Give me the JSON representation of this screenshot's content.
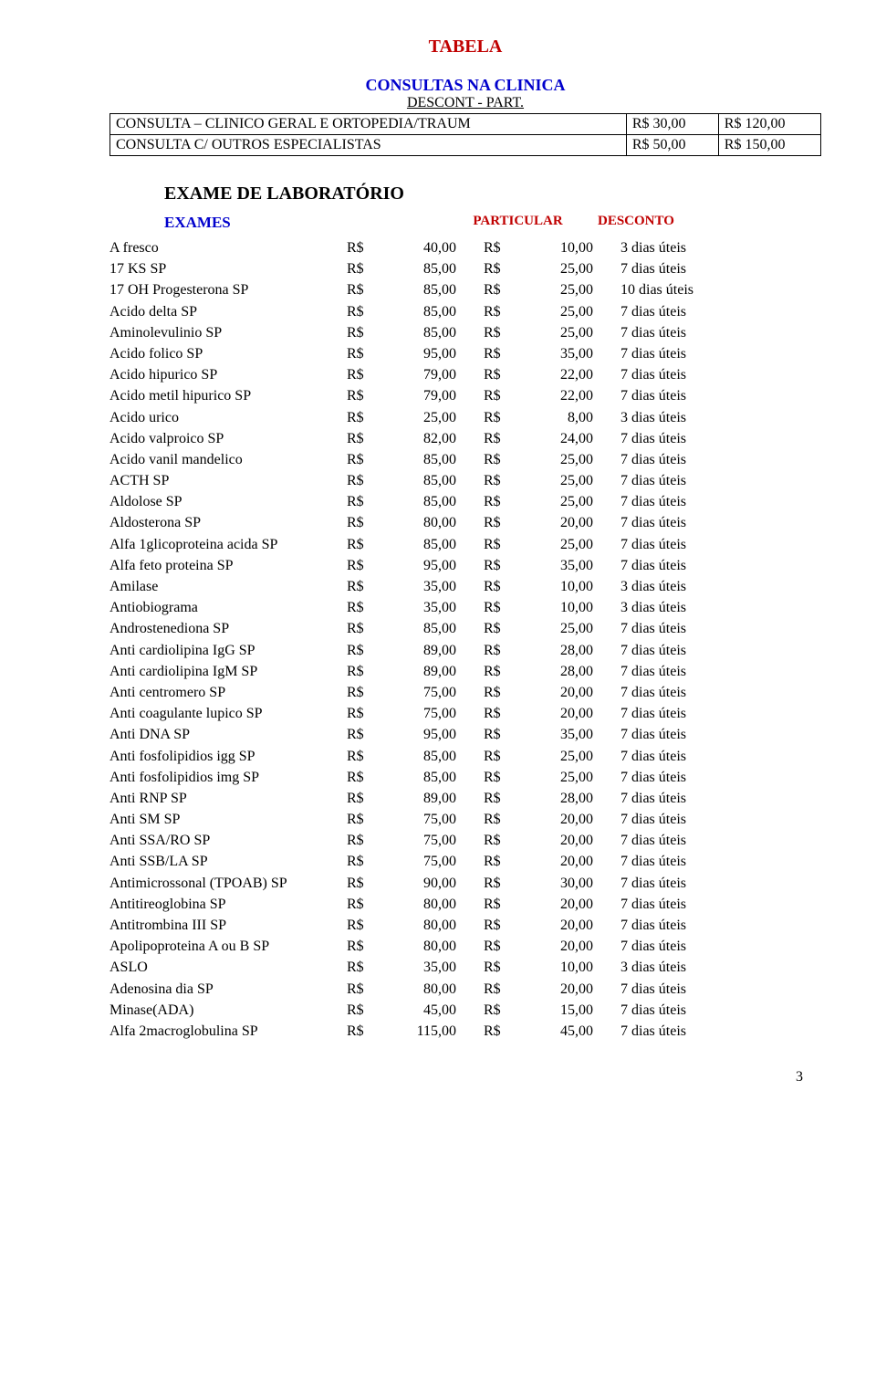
{
  "title": "TABELA",
  "consult_subtitle_blue": "CONSULTAS NA CLINICA",
  "consult_subtitle_black": "DESCONT - PART.",
  "consult_table": {
    "rows": [
      {
        "label": "CONSULTA – CLINICO GERAL E ORTOPEDIA/TRAUM",
        "discount": "R$ 30,00",
        "particular": "R$ 120,00"
      },
      {
        "label": "CONSULTA C/ OUTROS ESPECIALISTAS",
        "discount": "R$ 50,00",
        "particular": "R$ 150,00"
      }
    ]
  },
  "lab_title": "EXAME DE LABORATÓRIO",
  "lab_headers": {
    "exams": "EXAMES",
    "particular": "PARTICULAR",
    "discount": "DESCONTO"
  },
  "currency": "R$",
  "lab_rows": [
    {
      "name": "A fresco",
      "p": "40,00",
      "d": "10,00",
      "term": "3 dias úteis"
    },
    {
      "name": "17 KS SP",
      "p": "85,00",
      "d": "25,00",
      "term": "7 dias úteis"
    },
    {
      "name": "17 OH Progesterona SP",
      "p": "85,00",
      "d": "25,00",
      "term": "10 dias úteis"
    },
    {
      "name": "Acido delta SP",
      "p": "85,00",
      "d": "25,00",
      "term": "7 dias úteis"
    },
    {
      "name": "Aminolevulinio SP",
      "p": "85,00",
      "d": "25,00",
      "term": "7 dias úteis"
    },
    {
      "name": "Acido folico SP",
      "p": "95,00",
      "d": "35,00",
      "term": "7 dias úteis"
    },
    {
      "name": "Acido hipurico SP",
      "p": "79,00",
      "d": "22,00",
      "term": "7 dias úteis"
    },
    {
      "name": "Acido metil hipurico SP",
      "p": "79,00",
      "d": "22,00",
      "term": "7 dias úteis"
    },
    {
      "name": "Acido urico",
      "p": "25,00",
      "d": "8,00",
      "term": "3 dias úteis"
    },
    {
      "name": "Acido valproico SP",
      "p": "82,00",
      "d": "24,00",
      "term": "7 dias úteis"
    },
    {
      "name": "Acido vanil mandelico",
      "p": "85,00",
      "d": "25,00",
      "term": "7 dias úteis"
    },
    {
      "name": "ACTH SP",
      "p": "85,00",
      "d": "25,00",
      "term": "7 dias úteis"
    },
    {
      "name": "Aldolose SP",
      "p": "85,00",
      "d": "25,00",
      "term": "7 dias úteis"
    },
    {
      "name": "Aldosterona SP",
      "p": "80,00",
      "d": "20,00",
      "term": "7 dias úteis"
    },
    {
      "name": "Alfa 1glicoproteina acida SP",
      "p": "85,00",
      "d": "25,00",
      "term": "7 dias úteis"
    },
    {
      "name": "Alfa feto proteina SP",
      "p": "95,00",
      "d": "35,00",
      "term": "7 dias úteis"
    },
    {
      "name": "Amilase",
      "p": "35,00",
      "d": "10,00",
      "term": "3 dias úteis"
    },
    {
      "name": "Antiobiograma",
      "p": "35,00",
      "d": "10,00",
      "term": "3 dias úteis"
    },
    {
      "name": "Androstenediona SP",
      "p": "85,00",
      "d": "25,00",
      "term": "7 dias úteis"
    },
    {
      "name": "Anti cardiolipina IgG SP",
      "p": "89,00",
      "d": "28,00",
      "term": "7 dias úteis"
    },
    {
      "name": "Anti cardiolipina IgM SP",
      "p": "89,00",
      "d": "28,00",
      "term": "7 dias úteis"
    },
    {
      "name": "Anti centromero SP",
      "p": "75,00",
      "d": "20,00",
      "term": "7 dias úteis"
    },
    {
      "name": "Anti coagulante lupico SP",
      "p": "75,00",
      "d": "20,00",
      "term": "7 dias úteis"
    },
    {
      "name": "Anti DNA SP",
      "p": "95,00",
      "d": "35,00",
      "term": "7 dias úteis"
    },
    {
      "name": "Anti fosfolipidios igg SP",
      "p": "85,00",
      "d": "25,00",
      "term": "7 dias úteis"
    },
    {
      "name": "Anti fosfolipidios img SP",
      "p": "85,00",
      "d": "25,00",
      "term": "7 dias úteis"
    },
    {
      "name": "Anti RNP SP",
      "p": "89,00",
      "d": "28,00",
      "term": "7 dias úteis"
    },
    {
      "name": "Anti SM SP",
      "p": "75,00",
      "d": "20,00",
      "term": "7 dias úteis"
    },
    {
      "name": "Anti SSA/RO SP",
      "p": "75,00",
      "d": "20,00",
      "term": "7 dias úteis"
    },
    {
      "name": "Anti SSB/LA SP",
      "p": "75,00",
      "d": "20,00",
      "term": "7 dias úteis"
    },
    {
      "name": "Antimicrossonal (TPOAB) SP",
      "p": "90,00",
      "d": "30,00",
      "term": "7 dias úteis"
    },
    {
      "name": "Antitireoglobina SP",
      "p": "80,00",
      "d": "20,00",
      "term": "7 dias úteis"
    },
    {
      "name": "Antitrombina III SP",
      "p": "80,00",
      "d": "20,00",
      "term": "7 dias úteis"
    },
    {
      "name": "Apolipoproteina A ou B SP",
      "p": "80,00",
      "d": "20,00",
      "term": "7 dias úteis"
    },
    {
      "name": "ASLO",
      "p": "35,00",
      "d": "10,00",
      "term": "3 dias úteis"
    },
    {
      "name": "Adenosina dia SP",
      "p": "80,00",
      "d": "20,00",
      "term": "7 dias úteis"
    },
    {
      "name": "Minase(ADA)",
      "p": "45,00",
      "d": "15,00",
      "term": "7 dias úteis"
    },
    {
      "name": "Alfa 2macroglobulina SP",
      "p": "115,00",
      "d": "45,00",
      "term": "7 dias úteis"
    }
  ],
  "page_number": "3",
  "colors": {
    "red": "#c00000",
    "blue": "#0000cc",
    "black": "#000000",
    "background": "#ffffff"
  },
  "typography": {
    "family": "Times New Roman",
    "title_size_pt": 15,
    "body_size_pt": 12
  }
}
